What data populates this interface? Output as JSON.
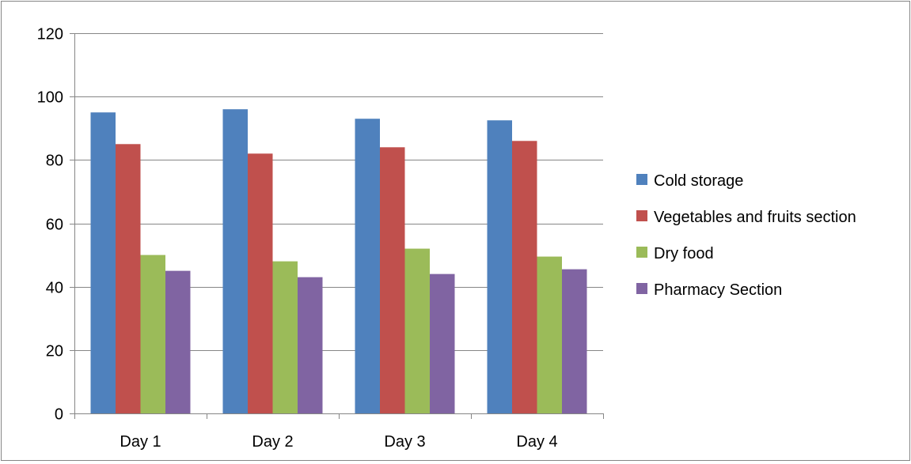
{
  "chart_data": {
    "type": "bar",
    "title": "",
    "xlabel": "",
    "ylabel": "",
    "categories": [
      "Day 1",
      "Day 2",
      "Day 3",
      "Day 4"
    ],
    "ylim": [
      0,
      120
    ],
    "yticks": [
      0,
      20,
      40,
      60,
      80,
      100,
      120
    ],
    "grid": true,
    "legend_position": "right",
    "series": [
      {
        "name": "Cold storage",
        "color": "#4F81BD",
        "values": [
          95,
          96,
          93,
          92.5
        ]
      },
      {
        "name": "Vegetables and fruits section",
        "color": "#C0504D",
        "values": [
          85,
          82,
          84,
          86
        ]
      },
      {
        "name": "Dry food",
        "color": "#9BBB59",
        "values": [
          50,
          48,
          52,
          49.5
        ]
      },
      {
        "name": "Pharmacy Section",
        "color": "#8064A2",
        "values": [
          45,
          43,
          44,
          45.5
        ]
      }
    ]
  }
}
